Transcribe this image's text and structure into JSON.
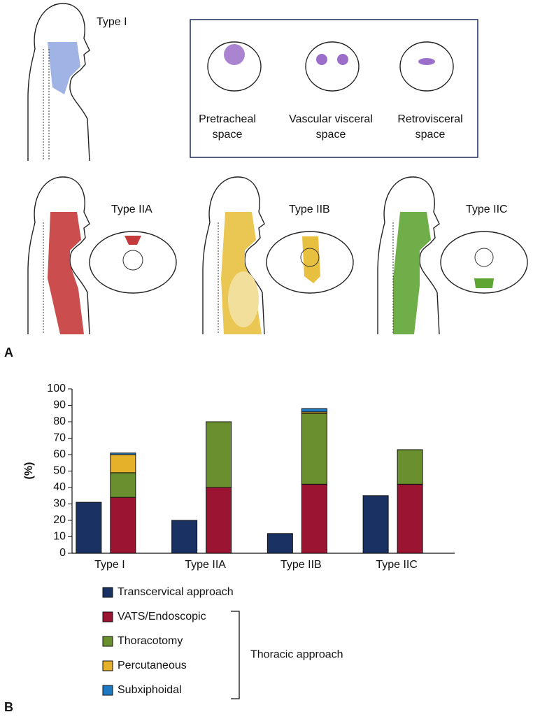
{
  "panel_a": {
    "label": "A",
    "type_one": "Type I",
    "spaces": [
      "Pretracheal space",
      "Vascular visceral space",
      "Retrovisceral space"
    ],
    "types": [
      "Type IIA",
      "Type IIB",
      "Type IIC"
    ]
  },
  "chart_data": {
    "type": "bar",
    "panel_label": "B",
    "ylabel": "(%)",
    "categories": [
      "Type I",
      "Type IIA",
      "Type IIB",
      "Type IIC"
    ],
    "series": [
      {
        "name": "Transcervical approach",
        "color": "#1a3263",
        "values": [
          31,
          20,
          12,
          35
        ]
      },
      {
        "name": "VATS/Endoscopic",
        "color": "#9b1432",
        "values": [
          34,
          40,
          42,
          42
        ]
      },
      {
        "name": "Thoracotomy",
        "color": "#6a8f2e",
        "values": [
          15,
          40,
          43,
          21
        ]
      },
      {
        "name": "Percutaneous",
        "color": "#e6b12a",
        "values": [
          11,
          0,
          1,
          0
        ]
      },
      {
        "name": "Subxiphoidal",
        "color": "#1e78c2",
        "values": [
          1,
          0,
          2,
          0
        ]
      }
    ],
    "legend_groups": [
      {
        "label": "Thoracic approach",
        "series": [
          1,
          2,
          3,
          4
        ]
      }
    ],
    "ylim": [
      0,
      100
    ],
    "yticks": [
      0,
      10,
      20,
      30,
      40,
      50,
      60,
      70,
      80,
      90,
      100
    ]
  }
}
